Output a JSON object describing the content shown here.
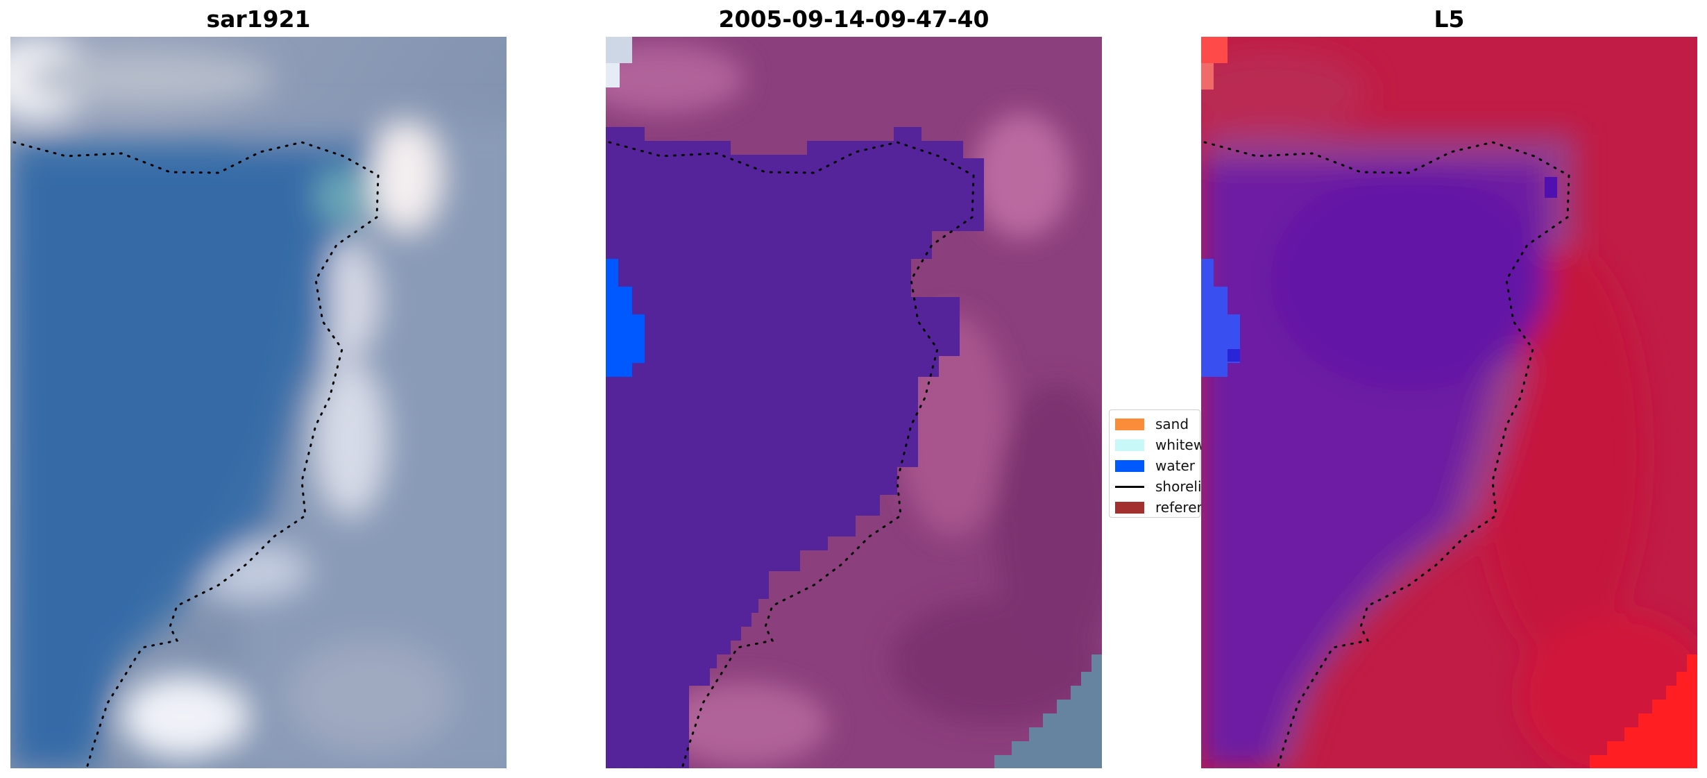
{
  "panels": [
    {
      "title": "sar1921"
    },
    {
      "title": "2005-09-14-09-47-40"
    },
    {
      "title": "L5"
    }
  ],
  "legend": {
    "items": [
      {
        "label": "sand",
        "color": "#fb8c3a"
      },
      {
        "label": "whitewater",
        "color": "#c8f8f8"
      },
      {
        "label": "water",
        "color": "#0059ff"
      },
      {
        "label": "shoreline",
        "color": "#000000"
      },
      {
        "label": "reference shoreline",
        "color": "#a3302f"
      }
    ]
  }
}
